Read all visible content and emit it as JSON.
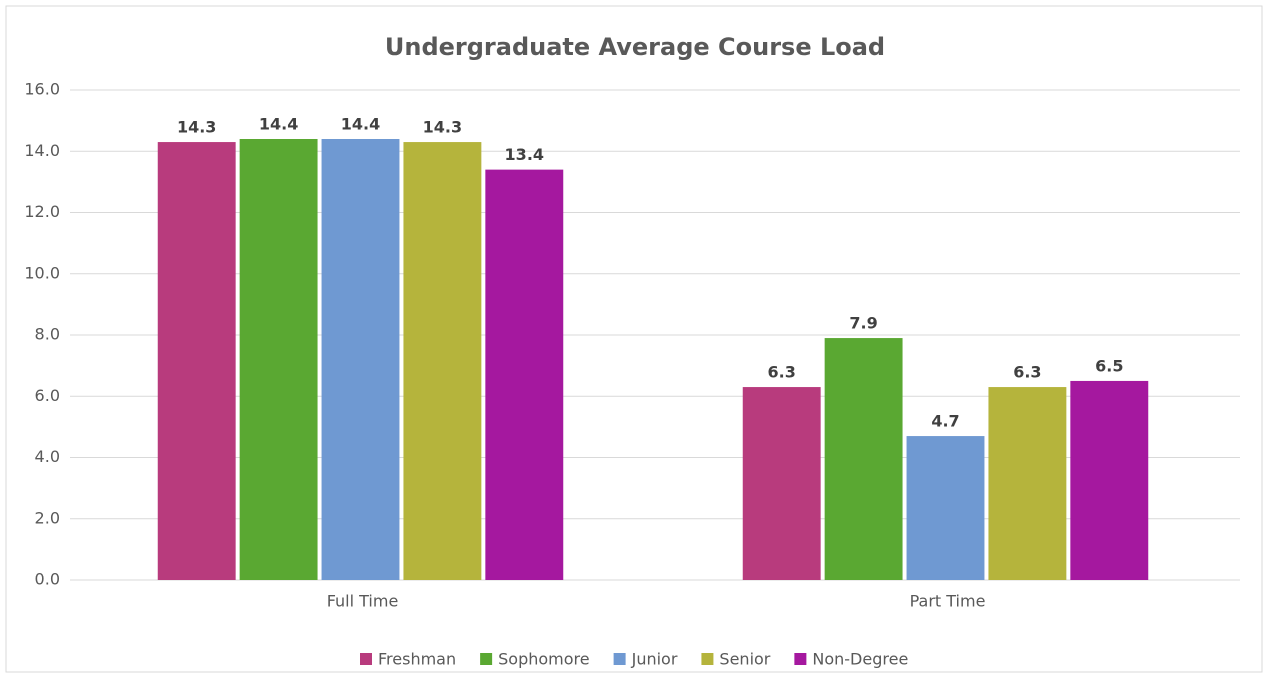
{
  "chart_data": {
    "type": "bar",
    "title": "Undergraduate Average Course Load",
    "categories": [
      "Full Time",
      "Part Time"
    ],
    "series": [
      {
        "name": "Freshman",
        "color": "#b83b7d",
        "values": [
          14.3,
          6.3
        ]
      },
      {
        "name": "Sophomore",
        "color": "#5aa832",
        "values": [
          14.4,
          7.9
        ]
      },
      {
        "name": "Junior",
        "color": "#6f99d2",
        "values": [
          14.4,
          4.7
        ]
      },
      {
        "name": "Senior",
        "color": "#b5b43c",
        "values": [
          14.3,
          6.3
        ]
      },
      {
        "name": "Non-Degree",
        "color": "#a5189f",
        "values": [
          13.4,
          6.5
        ]
      }
    ],
    "ylim": [
      0,
      16
    ],
    "yticks": [
      {
        "value": 0,
        "label": "0.0"
      },
      {
        "value": 2,
        "label": "2.0"
      },
      {
        "value": 4,
        "label": "4.0"
      },
      {
        "value": 6,
        "label": "6.0"
      },
      {
        "value": 8,
        "label": "8.0"
      },
      {
        "value": 10,
        "label": "10.0"
      },
      {
        "value": 12,
        "label": "12.0"
      },
      {
        "value": 14,
        "label": "14.0"
      },
      {
        "value": 16,
        "label": "16.0"
      }
    ],
    "grid": true,
    "legend": "bottom"
  }
}
